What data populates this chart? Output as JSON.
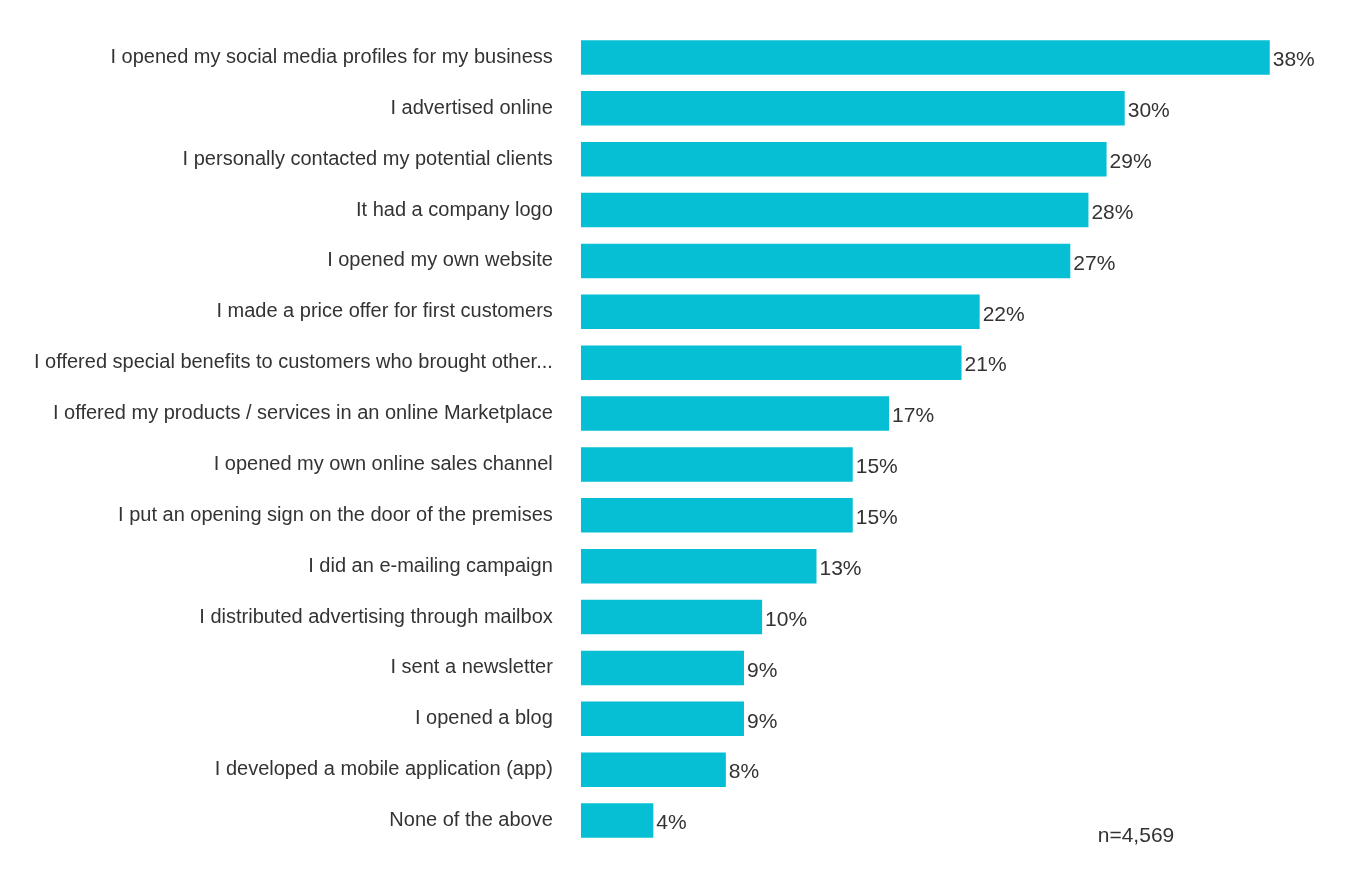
{
  "chart_data": {
    "type": "bar",
    "orientation": "horizontal",
    "categories": [
      "I opened my social media profiles for my business",
      "I advertised online",
      "I personally contacted my potential clients",
      "It had a company logo",
      "I opened my own website",
      "I made a price offer for first customers",
      "I offered special benefits to customers who brought other...",
      "I offered my products / services in an online Marketplace",
      "I opened my own online sales channel",
      "I put an opening sign on the door of the premises",
      "I did an e-mailing campaign",
      "I distributed advertising through mailbox",
      "I sent a newsletter",
      "I opened a blog",
      "I developed a mobile application (app)",
      "None of the above"
    ],
    "values": [
      38,
      30,
      29,
      28,
      27,
      22,
      21,
      17,
      15,
      15,
      13,
      10,
      9,
      9,
      8,
      4
    ],
    "value_labels": [
      "38%",
      "30%",
      "29%",
      "28%",
      "27%",
      "22%",
      "21%",
      "17%",
      "15%",
      "15%",
      "13%",
      "10%",
      "9%",
      "9%",
      "8%",
      "4%"
    ],
    "color": "#06bfd4",
    "legend": false,
    "annotations": [
      "n=4,569"
    ]
  }
}
